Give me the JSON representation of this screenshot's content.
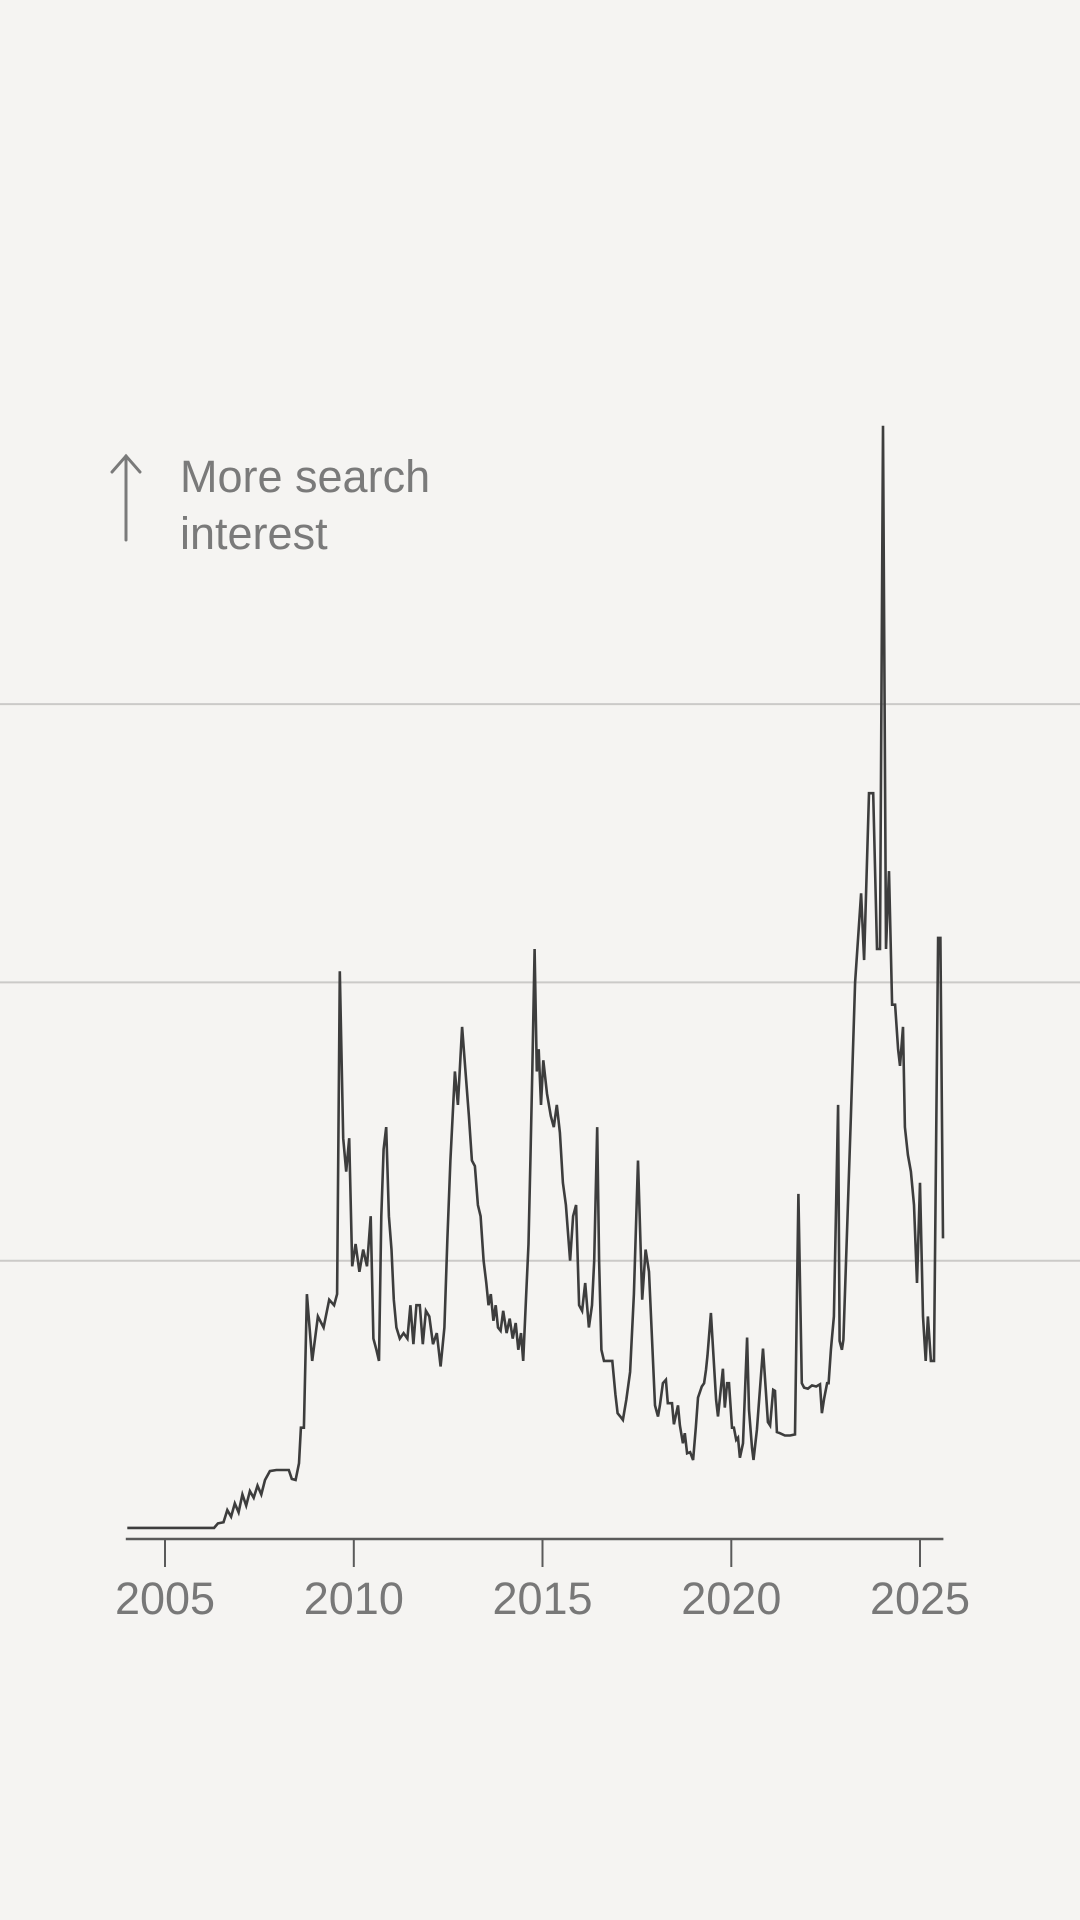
{
  "annotation": {
    "line1": "More search",
    "line2": "interest"
  },
  "colors": {
    "background": "#f5f4f2",
    "line": "#3d3d3d",
    "gridline": "#cbcac8",
    "axis": "#5a5a5a",
    "tick_label": "#787878",
    "annotation_text": "#7a7a7a"
  },
  "chart_data": {
    "type": "line",
    "title": "",
    "annotation_label": "More search interest",
    "grid": "horizontal-only",
    "legend_position": "none",
    "x_axis": {
      "tick_labels": [
        "2005",
        "2010",
        "2015",
        "2020",
        "2025"
      ],
      "tick_values": [
        2005,
        2010,
        2015,
        2020,
        2025
      ],
      "range": [
        2004.0,
        2025.62
      ]
    },
    "y_axis": {
      "range": [
        0,
        100
      ],
      "gridline_values": [
        25,
        50,
        75
      ],
      "baseline_value": 0
    },
    "series": [
      {
        "name": "Search interest",
        "points": [
          [
            2004.0,
            1
          ],
          [
            2004.3,
            1
          ],
          [
            2004.6,
            1
          ],
          [
            2004.9,
            1
          ],
          [
            2005.2,
            1
          ],
          [
            2005.5,
            1
          ],
          [
            2005.8,
            1
          ],
          [
            2006.1,
            1
          ],
          [
            2006.3,
            1
          ],
          [
            2006.4,
            1.4
          ],
          [
            2006.55,
            1.5
          ],
          [
            2006.65,
            2.6
          ],
          [
            2006.75,
            2.0
          ],
          [
            2006.85,
            3.2
          ],
          [
            2006.95,
            2.4
          ],
          [
            2007.05,
            4.0
          ],
          [
            2007.15,
            3.0
          ],
          [
            2007.25,
            4.3
          ],
          [
            2007.35,
            3.7
          ],
          [
            2007.45,
            4.8
          ],
          [
            2007.55,
            4.0
          ],
          [
            2007.65,
            5.3
          ],
          [
            2007.78,
            6.1
          ],
          [
            2007.95,
            6.2
          ],
          [
            2008.15,
            6.2
          ],
          [
            2008.28,
            6.2
          ],
          [
            2008.36,
            5.4
          ],
          [
            2008.46,
            5.3
          ],
          [
            2008.55,
            6.8
          ],
          [
            2008.6,
            10
          ],
          [
            2008.68,
            10
          ],
          [
            2008.76,
            22
          ],
          [
            2008.9,
            16
          ],
          [
            2009.05,
            20
          ],
          [
            2009.2,
            19
          ],
          [
            2009.35,
            21.5
          ],
          [
            2009.48,
            21
          ],
          [
            2009.56,
            22
          ],
          [
            2009.63,
            51
          ],
          [
            2009.72,
            36
          ],
          [
            2009.8,
            33
          ],
          [
            2009.88,
            36
          ],
          [
            2009.96,
            24.5
          ],
          [
            2010.05,
            26.5
          ],
          [
            2010.15,
            24
          ],
          [
            2010.25,
            26
          ],
          [
            2010.35,
            24.5
          ],
          [
            2010.45,
            29
          ],
          [
            2010.52,
            18
          ],
          [
            2010.6,
            17
          ],
          [
            2010.67,
            16
          ],
          [
            2010.73,
            29
          ],
          [
            2010.79,
            35
          ],
          [
            2010.86,
            37
          ],
          [
            2010.93,
            29
          ],
          [
            2011.0,
            26
          ],
          [
            2011.06,
            21.5
          ],
          [
            2011.13,
            19
          ],
          [
            2011.22,
            18
          ],
          [
            2011.32,
            18.5
          ],
          [
            2011.42,
            18
          ],
          [
            2011.5,
            21
          ],
          [
            2011.58,
            17.5
          ],
          [
            2011.66,
            21
          ],
          [
            2011.75,
            21
          ],
          [
            2011.83,
            17.5
          ],
          [
            2011.91,
            20.5
          ],
          [
            2012.0,
            20
          ],
          [
            2012.1,
            17.5
          ],
          [
            2012.2,
            18.5
          ],
          [
            2012.3,
            15.5
          ],
          [
            2012.4,
            19
          ],
          [
            2012.48,
            27
          ],
          [
            2012.56,
            34
          ],
          [
            2012.68,
            42
          ],
          [
            2012.76,
            39
          ],
          [
            2012.87,
            46
          ],
          [
            2012.96,
            42
          ],
          [
            2013.05,
            38
          ],
          [
            2013.13,
            34
          ],
          [
            2013.21,
            33.5
          ],
          [
            2013.29,
            30
          ],
          [
            2013.36,
            29
          ],
          [
            2013.44,
            25
          ],
          [
            2013.51,
            23
          ],
          [
            2013.57,
            21
          ],
          [
            2013.63,
            22
          ],
          [
            2013.7,
            19.6
          ],
          [
            2013.76,
            21
          ],
          [
            2013.82,
            19
          ],
          [
            2013.89,
            18.7
          ],
          [
            2013.96,
            20.5
          ],
          [
            2014.05,
            18.5
          ],
          [
            2014.13,
            19.8
          ],
          [
            2014.21,
            18
          ],
          [
            2014.29,
            19.4
          ],
          [
            2014.36,
            17
          ],
          [
            2014.43,
            18.5
          ],
          [
            2014.49,
            16
          ],
          [
            2014.56,
            21.4
          ],
          [
            2014.63,
            26.5
          ],
          [
            2014.68,
            34
          ],
          [
            2014.73,
            42
          ],
          [
            2014.79,
            53
          ],
          [
            2014.85,
            42
          ],
          [
            2014.9,
            44
          ],
          [
            2014.96,
            39
          ],
          [
            2015.02,
            43
          ],
          [
            2015.12,
            40
          ],
          [
            2015.22,
            38
          ],
          [
            2015.3,
            37
          ],
          [
            2015.38,
            39
          ],
          [
            2015.46,
            36.5
          ],
          [
            2015.54,
            32
          ],
          [
            2015.62,
            30
          ],
          [
            2015.73,
            25
          ],
          [
            2015.81,
            29
          ],
          [
            2015.89,
            30
          ],
          [
            2015.97,
            21
          ],
          [
            2016.05,
            20.5
          ],
          [
            2016.13,
            23
          ],
          [
            2016.23,
            19
          ],
          [
            2016.31,
            21
          ],
          [
            2016.37,
            25
          ],
          [
            2016.45,
            37
          ],
          [
            2016.5,
            25
          ],
          [
            2016.56,
            17
          ],
          [
            2016.63,
            16
          ],
          [
            2016.74,
            16
          ],
          [
            2016.85,
            16
          ],
          [
            2016.93,
            13
          ],
          [
            2016.99,
            11.3
          ],
          [
            2017.06,
            11
          ],
          [
            2017.13,
            10.7
          ],
          [
            2017.22,
            12.5
          ],
          [
            2017.32,
            15
          ],
          [
            2017.42,
            22
          ],
          [
            2017.53,
            34
          ],
          [
            2017.64,
            21.5
          ],
          [
            2017.73,
            26
          ],
          [
            2017.82,
            24
          ],
          [
            2017.9,
            18
          ],
          [
            2017.98,
            12
          ],
          [
            2018.06,
            11
          ],
          [
            2018.11,
            12
          ],
          [
            2018.19,
            14
          ],
          [
            2018.27,
            14.3
          ],
          [
            2018.32,
            12.2
          ],
          [
            2018.43,
            12.2
          ],
          [
            2018.48,
            10.3
          ],
          [
            2018.59,
            12
          ],
          [
            2018.64,
            10.2
          ],
          [
            2018.72,
            8.6
          ],
          [
            2018.77,
            9.5
          ],
          [
            2018.83,
            7.7
          ],
          [
            2018.91,
            7.8
          ],
          [
            2018.99,
            7.1
          ],
          [
            2019.06,
            10
          ],
          [
            2019.12,
            12.7
          ],
          [
            2019.17,
            13.2
          ],
          [
            2019.22,
            13.7
          ],
          [
            2019.28,
            14
          ],
          [
            2019.33,
            15.2
          ],
          [
            2019.37,
            16.5
          ],
          [
            2019.46,
            20.3
          ],
          [
            2019.6,
            12.5
          ],
          [
            2019.65,
            11
          ],
          [
            2019.78,
            15.3
          ],
          [
            2019.83,
            11.8
          ],
          [
            2019.89,
            14
          ],
          [
            2019.94,
            14
          ],
          [
            2020.02,
            10
          ],
          [
            2020.07,
            10
          ],
          [
            2020.13,
            8.9
          ],
          [
            2020.18,
            9.1
          ],
          [
            2020.23,
            7.3
          ],
          [
            2020.31,
            8.6
          ],
          [
            2020.42,
            18.1
          ],
          [
            2020.47,
            11.6
          ],
          [
            2020.55,
            8.2
          ],
          [
            2020.59,
            7.1
          ],
          [
            2020.68,
            9.8
          ],
          [
            2020.76,
            13.4
          ],
          [
            2020.84,
            17.1
          ],
          [
            2020.92,
            13.1
          ],
          [
            2020.97,
            10.5
          ],
          [
            2021.03,
            10.2
          ],
          [
            2021.11,
            13.4
          ],
          [
            2021.16,
            13.3
          ],
          [
            2021.21,
            9.6
          ],
          [
            2021.29,
            9.5
          ],
          [
            2021.42,
            9.3
          ],
          [
            2021.56,
            9.3
          ],
          [
            2021.69,
            9.4
          ],
          [
            2021.78,
            31
          ],
          [
            2021.87,
            14
          ],
          [
            2021.93,
            13.6
          ],
          [
            2022.03,
            13.5
          ],
          [
            2022.14,
            13.8
          ],
          [
            2022.25,
            13.7
          ],
          [
            2022.35,
            13.9
          ],
          [
            2022.4,
            11.3
          ],
          [
            2022.46,
            12.6
          ],
          [
            2022.54,
            14
          ],
          [
            2022.58,
            14
          ],
          [
            2022.64,
            17
          ],
          [
            2022.72,
            20
          ],
          [
            2022.83,
            39
          ],
          [
            2022.87,
            17.8
          ],
          [
            2022.93,
            17
          ],
          [
            2022.97,
            17.9
          ],
          [
            2023.06,
            27
          ],
          [
            2023.17,
            38
          ],
          [
            2023.28,
            50
          ],
          [
            2023.44,
            58
          ],
          [
            2023.52,
            52
          ],
          [
            2023.65,
            67
          ],
          [
            2023.76,
            67
          ],
          [
            2023.86,
            53
          ],
          [
            2023.94,
            53
          ],
          [
            2024.02,
            100
          ],
          [
            2024.1,
            53
          ],
          [
            2024.18,
            60
          ],
          [
            2024.26,
            48
          ],
          [
            2024.34,
            48
          ],
          [
            2024.42,
            44
          ],
          [
            2024.47,
            42.5
          ],
          [
            2024.55,
            46
          ],
          [
            2024.6,
            37
          ],
          [
            2024.68,
            34.5
          ],
          [
            2024.76,
            33
          ],
          [
            2024.84,
            30
          ],
          [
            2024.92,
            23
          ],
          [
            2025.0,
            32
          ],
          [
            2025.08,
            20
          ],
          [
            2025.15,
            16
          ],
          [
            2025.21,
            20
          ],
          [
            2025.29,
            16
          ],
          [
            2025.37,
            16
          ],
          [
            2025.48,
            54
          ],
          [
            2025.54,
            54
          ],
          [
            2025.61,
            27
          ]
        ]
      }
    ]
  }
}
